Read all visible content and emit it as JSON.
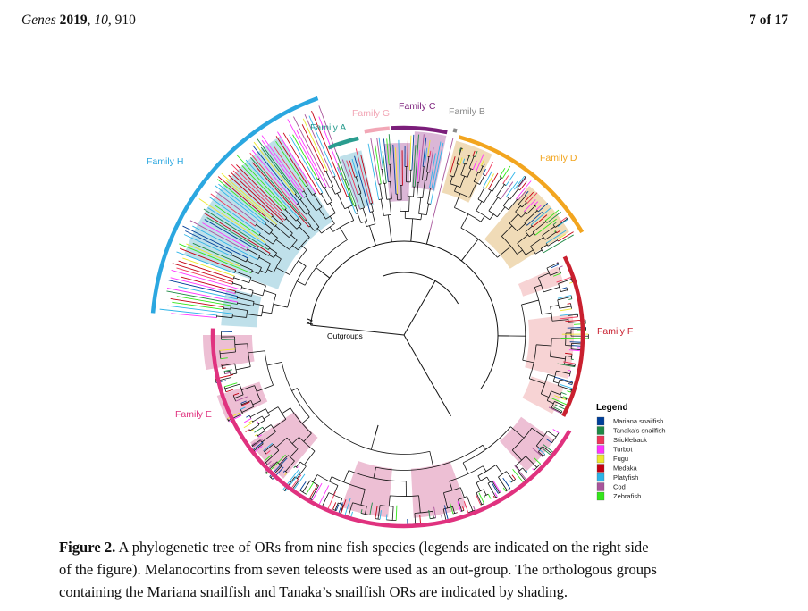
{
  "header": {
    "journal": "Genes",
    "year": "2019",
    "volume": "10",
    "article": "910",
    "page": "7 of 17"
  },
  "figure": {
    "outgroup_label": "Outgroups",
    "families": [
      {
        "name": "Family H",
        "color": "#2ba7e0"
      },
      {
        "name": "Family A",
        "color": "#2a9d8f"
      },
      {
        "name": "Family G",
        "color": "#f2a7b6"
      },
      {
        "name": "Family C",
        "color": "#7b1e7a"
      },
      {
        "name": "Family B",
        "color": "#8a8a8a"
      },
      {
        "name": "Family D",
        "color": "#f2a51f"
      },
      {
        "name": "Family F",
        "color": "#c9202f"
      },
      {
        "name": "Family E",
        "color": "#e0327f"
      }
    ],
    "legend": {
      "title": "Legend",
      "items": [
        {
          "label": "Mariana snailfish",
          "color": "#003f9a"
        },
        {
          "label": "Tanaka's snailfish",
          "color": "#1e8a45"
        },
        {
          "label": "Stickleback",
          "color": "#f0365a"
        },
        {
          "label": "Turbot",
          "color": "#ff33ff"
        },
        {
          "label": "Fugu",
          "color": "#ede82e"
        },
        {
          "label": "Medaka",
          "color": "#c40012"
        },
        {
          "label": "Platyfish",
          "color": "#2db4e8"
        },
        {
          "label": "Cod",
          "color": "#a8559b"
        },
        {
          "label": "Zebrafish",
          "color": "#33e61a"
        }
      ]
    }
  },
  "caption": {
    "label": "Figure 2.",
    "line1": " A phylogenetic tree of ORs from nine fish species (legends are indicated on the right side",
    "line2": "of the figure). Melanocortins from seven teleosts were used as an out-group. The orthologous groups",
    "line3": "containing the Mariana snailfish and Tanaka’s snailfish ORs are indicated by shading."
  }
}
